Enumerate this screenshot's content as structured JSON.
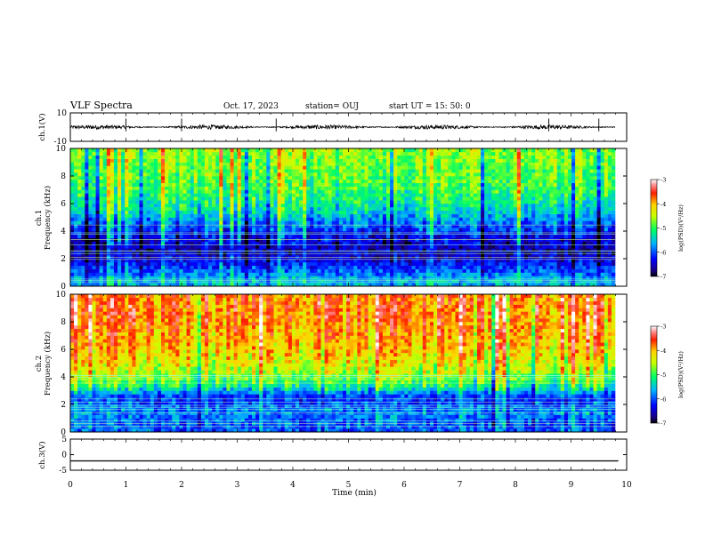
{
  "header": {
    "title": "VLF Spectra",
    "date": "Oct. 17, 2023",
    "station": "station= OUJ",
    "start": "start  UT =   15: 50: 0"
  },
  "chart_data": [
    {
      "type": "line",
      "panel": "ch1-waveform",
      "ylabel": "ch.1(V)",
      "ylim": [
        -10,
        10
      ],
      "yticks": [
        "10",
        "-10"
      ],
      "xlim": [
        0,
        10
      ],
      "description_values": {
        "baseline": 0,
        "noise_amplitude": 1.5,
        "spikes_at_min": [
          1.0,
          2.0,
          3.7,
          8.6,
          9.5
        ]
      }
    },
    {
      "type": "heatmap",
      "panel": "ch1-spectrogram",
      "ylabel": "Frequency (kHz)",
      "ylabel_prefix": "ch.1",
      "ylim": [
        0,
        10
      ],
      "yticks": [
        "0",
        "2",
        "4",
        "6",
        "8",
        "10"
      ],
      "xlim": [
        0,
        9.85
      ],
      "colorbar": {
        "label": "log(PSD)(V²/Hz)",
        "range": [
          -7,
          -3
        ],
        "ticks": [
          "-3",
          "-4",
          "-5",
          "-6",
          "-7"
        ]
      },
      "log_psd_profile": [
        {
          "freq_khz": 0.5,
          "value": -5.6
        },
        {
          "freq_khz": 1.5,
          "value": -6.2
        },
        {
          "freq_khz": 2.5,
          "value": -6.6
        },
        {
          "freq_khz": 3.5,
          "value": -6.4
        },
        {
          "freq_khz": 4.5,
          "value": -5.9
        },
        {
          "freq_khz": 5.5,
          "value": -5.4
        },
        {
          "freq_khz": 6.5,
          "value": -5.1
        },
        {
          "freq_khz": 7.5,
          "value": -4.9
        },
        {
          "freq_khz": 8.5,
          "value": -4.8
        },
        {
          "freq_khz": 9.5,
          "value": -4.7
        }
      ]
    },
    {
      "type": "heatmap",
      "panel": "ch2-spectrogram",
      "ylabel": "Frequency (kHz)",
      "ylabel_prefix": "ch.2",
      "ylim": [
        0,
        10
      ],
      "yticks": [
        "0",
        "2",
        "4",
        "6",
        "8",
        "10"
      ],
      "xlim": [
        0,
        9.85
      ],
      "colorbar": {
        "label": "log(PSD)(V²/Hz)",
        "range": [
          -7,
          -3
        ],
        "ticks": [
          "-3",
          "-4",
          "-5",
          "-6",
          "-7"
        ]
      },
      "log_psd_profile": [
        {
          "freq_khz": 0.5,
          "value": -6.0
        },
        {
          "freq_khz": 1.5,
          "value": -5.8
        },
        {
          "freq_khz": 2.5,
          "value": -6.2
        },
        {
          "freq_khz": 3.5,
          "value": -5.0
        },
        {
          "freq_khz": 4.5,
          "value": -4.5
        },
        {
          "freq_khz": 5.5,
          "value": -4.2
        },
        {
          "freq_khz": 6.5,
          "value": -4.0
        },
        {
          "freq_khz": 7.5,
          "value": -3.9
        },
        {
          "freq_khz": 8.5,
          "value": -3.8
        },
        {
          "freq_khz": 9.5,
          "value": -3.8
        }
      ]
    },
    {
      "type": "line",
      "panel": "ch3-waveform",
      "ylabel": "ch.3(V)",
      "ylim": [
        -5,
        5
      ],
      "yticks": [
        "5",
        "0",
        "-5"
      ],
      "xlim": [
        0,
        10
      ],
      "x": [
        0,
        9.85
      ],
      "y": [
        -2,
        -2
      ]
    }
  ],
  "xaxis": {
    "label": "Time (min)",
    "ticks": [
      "0",
      "1",
      "2",
      "3",
      "4",
      "5",
      "6",
      "7",
      "8",
      "9",
      "10"
    ],
    "range": [
      0,
      10
    ]
  }
}
